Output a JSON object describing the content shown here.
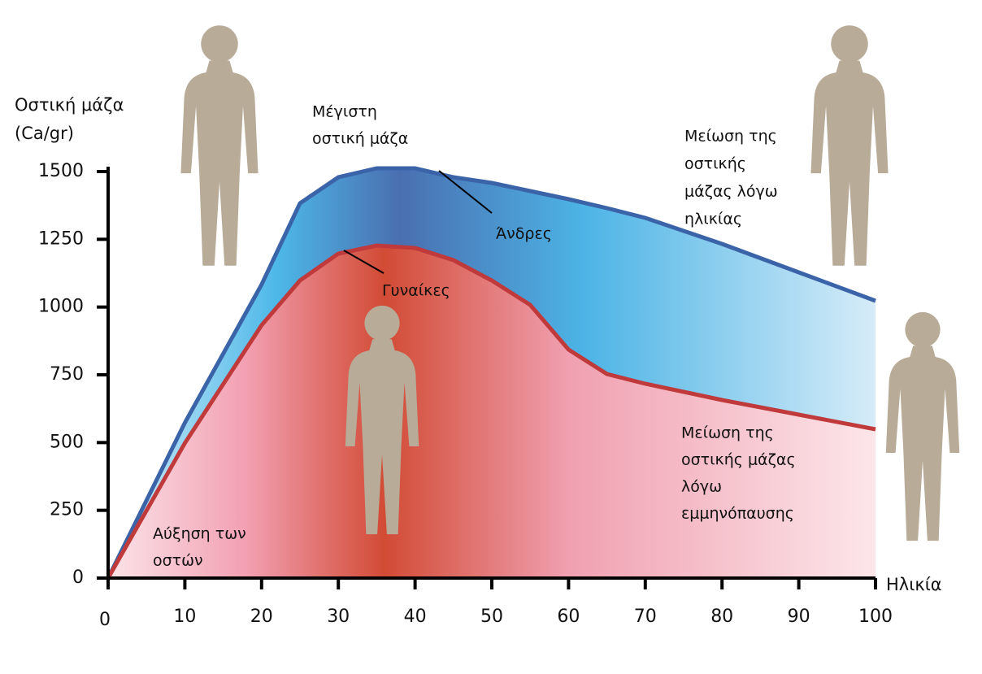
{
  "chart_data": {
    "type": "area",
    "y_label": [
      "Οστική μάζα",
      "(Ca/gr)"
    ],
    "x_label": "Ηλικία",
    "x": [
      0,
      10,
      20,
      25,
      30,
      35,
      40,
      45,
      50,
      55,
      60,
      65,
      70,
      80,
      90,
      100
    ],
    "series": [
      {
        "name": "Άνδρες",
        "color": "#3a63a8",
        "values": [
          0,
          573,
          1083,
          1383,
          1479,
          1512,
          1512,
          1479,
          1458,
          1428,
          1398,
          1365,
          1329,
          1233,
          1128,
          1023
        ]
      },
      {
        "name": "Γυναίκες",
        "color": "#c0393b",
        "values": [
          0,
          498,
          933,
          1098,
          1197,
          1227,
          1218,
          1173,
          1098,
          1008,
          843,
          753,
          717,
          657,
          603,
          549
        ]
      }
    ],
    "xlim": [
      0,
      100
    ],
    "ylim": [
      0,
      1500
    ],
    "xticks": [
      0,
      10,
      20,
      30,
      40,
      50,
      60,
      70,
      80,
      90,
      100
    ],
    "yticks": [
      0,
      250,
      500,
      750,
      1000,
      1250,
      1500
    ],
    "grid": false,
    "annotations": [
      {
        "lines": [
          "Μέγιστη",
          "οστική μάζα"
        ]
      },
      {
        "lines": [
          "Μείωση της",
          "οστικής",
          "μάζας λόγω",
          "ηλικίας"
        ]
      },
      {
        "lines": [
          "Μείωση της",
          "οστικής μάζας",
          "λόγω",
          "εμμηνόπαυσης"
        ]
      },
      {
        "lines": [
          "Αύξηση των",
          "οστών"
        ]
      }
    ]
  }
}
